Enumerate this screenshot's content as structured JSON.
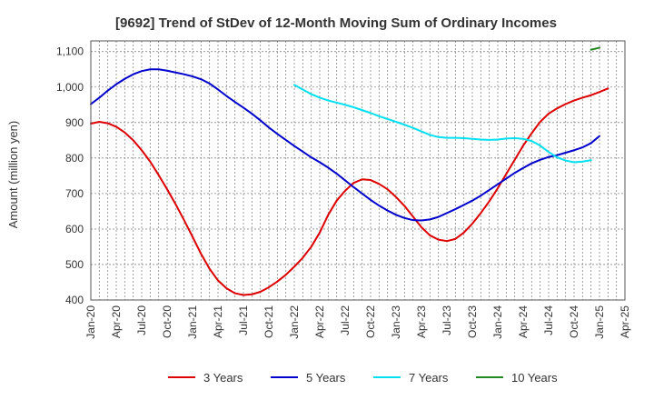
{
  "chart_data": {
    "type": "line",
    "title": "[9692]  Trend of StDev of 12-Month Moving Sum of Ordinary Incomes",
    "xlabel": "",
    "ylabel": "Amount (million yen)",
    "ylim": [
      400,
      1130
    ],
    "yticks": [
      400,
      500,
      600,
      700,
      800,
      900,
      1000,
      1100
    ],
    "ytick_labels": [
      "400",
      "500",
      "600",
      "700",
      "800",
      "900",
      "1,000",
      "1,100"
    ],
    "xtick_labels": [
      "Jan-20",
      "Apr-20",
      "Jul-20",
      "Oct-20",
      "Jan-21",
      "Apr-21",
      "Jul-21",
      "Oct-21",
      "Jan-22",
      "Apr-22",
      "Jul-22",
      "Oct-22",
      "Jan-23",
      "Apr-23",
      "Jul-23",
      "Oct-23",
      "Jan-24",
      "Apr-24",
      "Jul-24",
      "Oct-24",
      "Jan-25",
      "Apr-25"
    ],
    "grid": true,
    "legend_position": "bottom",
    "series": [
      {
        "name": "3 Years",
        "color": "#dd0000",
        "start_index": 0,
        "values": [
          897,
          902,
          898,
          888,
          872,
          850,
          822,
          790,
          752,
          712,
          670,
          625,
          578,
          530,
          488,
          455,
          433,
          419,
          414,
          416,
          423,
          436,
          452,
          471,
          494,
          519,
          550,
          590,
          640,
          680,
          708,
          730,
          740,
          738,
          727,
          712,
          690,
          665,
          635,
          605,
          582,
          570,
          566,
          572,
          590,
          615,
          645,
          678,
          715,
          755,
          795,
          835,
          870,
          902,
          925,
          940,
          952,
          962,
          970,
          977,
          986,
          996
        ]
      },
      {
        "name": "5 Years",
        "color": "#0000cc",
        "start_index": 0,
        "values": [
          952,
          970,
          990,
          1008,
          1023,
          1036,
          1045,
          1050,
          1050,
          1046,
          1041,
          1036,
          1030,
          1022,
          1010,
          993,
          975,
          958,
          942,
          925,
          906,
          886,
          868,
          851,
          834,
          818,
          802,
          788,
          773,
          756,
          737,
          718,
          700,
          682,
          666,
          652,
          640,
          631,
          625,
          624,
          627,
          634,
          645,
          656,
          668,
          680,
          694,
          710,
          726,
          742,
          758,
          772,
          785,
          795,
          803,
          808,
          815,
          822,
          830,
          842,
          862
        ]
      },
      {
        "name": "7 Years",
        "color": "#00e0f0",
        "start_index": 24,
        "values": [
          1006,
          993,
          980,
          970,
          962,
          956,
          950,
          943,
          935,
          927,
          918,
          910,
          902,
          894,
          885,
          875,
          865,
          859,
          857,
          857,
          856,
          854,
          852,
          851,
          852,
          855,
          856,
          854,
          848,
          835,
          817,
          802,
          793,
          788,
          790,
          794
        ]
      },
      {
        "name": "10 Years",
        "color": "#228822",
        "start_index": 59,
        "values": [
          1105,
          1111
        ]
      }
    ]
  }
}
